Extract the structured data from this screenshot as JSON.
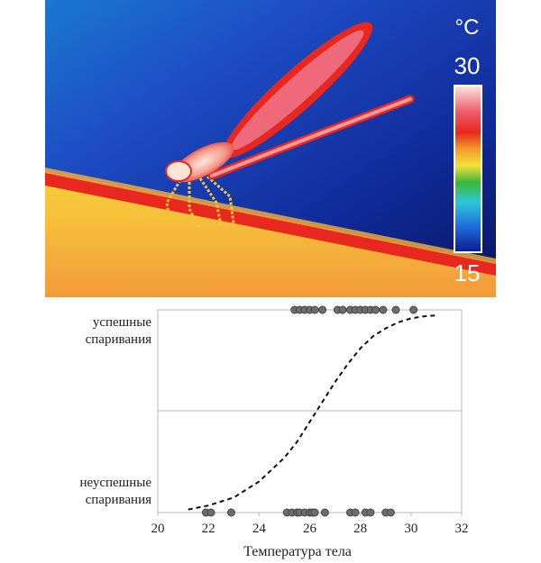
{
  "thermal_image": {
    "unit": "°C",
    "scale_max": "30",
    "scale_min": "15",
    "colors": {
      "background_dark": "#0b1a6e",
      "background_mid": "#1f46c8",
      "stick_hot": "#e8281e",
      "stick_warm": "#f7d23a",
      "insect_body": "#ee3a3a",
      "insect_core": "#fbe6d6"
    }
  },
  "chart_data": {
    "type": "scatter",
    "title": "",
    "xlabel": "Температура тела",
    "ylabel": "",
    "xlim": [
      20,
      32
    ],
    "ylim": [
      0,
      1
    ],
    "xticks": [
      20,
      22,
      24,
      26,
      28,
      30,
      32
    ],
    "y_categories": [
      {
        "value": 1,
        "label_lines": [
          "успешные",
          "спаривания"
        ]
      },
      {
        "value": 0,
        "label_lines": [
          "неуспешные",
          "спаривания"
        ]
      }
    ],
    "grid": false,
    "midline_y": 0.5,
    "series": [
      {
        "kind": "points",
        "y": 1,
        "color": "#6d6d6d",
        "x": [
          25.4,
          25.6,
          25.8,
          26.0,
          26.2,
          26.5,
          27.1,
          27.3,
          27.6,
          27.8,
          28.0,
          28.2,
          28.4,
          28.6,
          28.9,
          29.4,
          30.1
        ]
      },
      {
        "kind": "points",
        "y": 0,
        "color": "#6d6d6d",
        "x": [
          21.9,
          22.1,
          22.9,
          25.1,
          25.3,
          25.5,
          25.6,
          25.8,
          26.0,
          26.1,
          26.2,
          26.6,
          27.6,
          27.8,
          28.2,
          28.4,
          29.0,
          29.2
        ]
      },
      {
        "kind": "logistic_fit",
        "style": "dashed",
        "color": "#111111",
        "x": [
          21.2,
          22.0,
          23.0,
          24.0,
          25.0,
          25.5,
          26.0,
          26.5,
          27.0,
          27.5,
          28.0,
          28.5,
          29.0,
          29.5,
          30.0,
          30.5,
          31.0
        ],
        "y": [
          0.02,
          0.04,
          0.08,
          0.16,
          0.28,
          0.36,
          0.46,
          0.56,
          0.66,
          0.75,
          0.83,
          0.89,
          0.93,
          0.96,
          0.98,
          0.99,
          0.995
        ]
      }
    ]
  }
}
